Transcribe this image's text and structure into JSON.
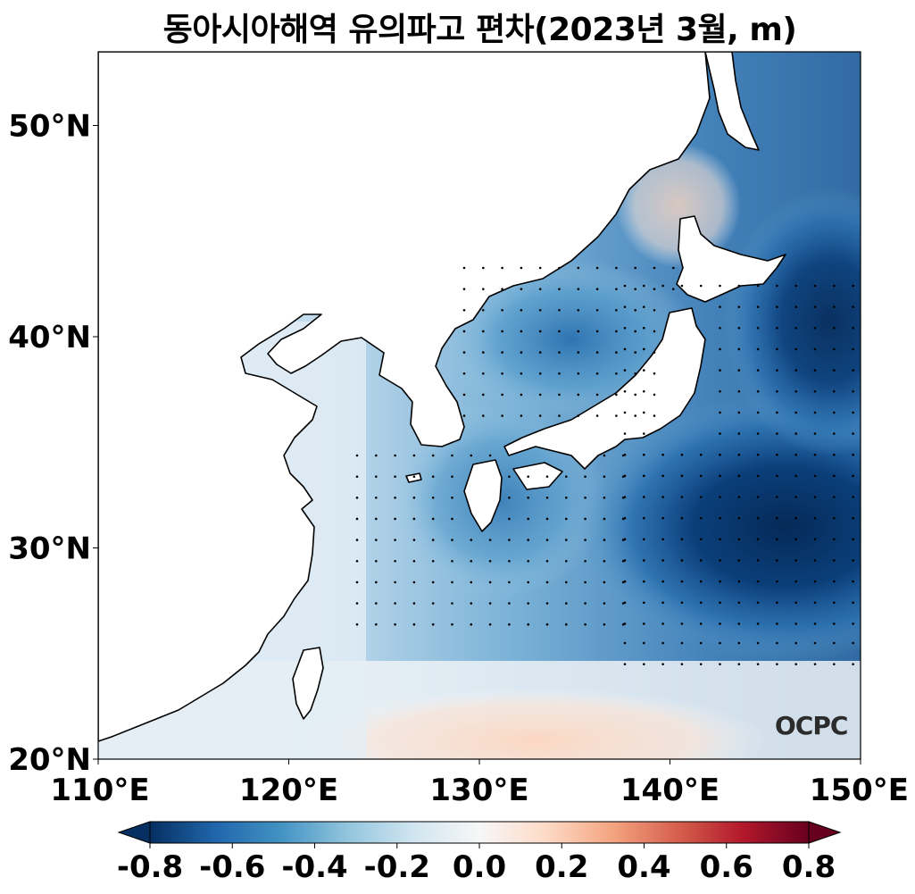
{
  "title": "동아시아해역 유의파고 편차(2023년 3월, m)",
  "logo_text": "OCPC",
  "map": {
    "lon_range": [
      110,
      150
    ],
    "lat_range": [
      20,
      53.5
    ],
    "x_ticks": [
      {
        "value": 110,
        "label": "110°E"
      },
      {
        "value": 120,
        "label": "120°E"
      },
      {
        "value": 130,
        "label": "130°E"
      },
      {
        "value": 140,
        "label": "140°E"
      },
      {
        "value": 150,
        "label": "150°E"
      }
    ],
    "y_ticks": [
      {
        "value": 20,
        "label": "20°N"
      },
      {
        "value": 30,
        "label": "30°N"
      },
      {
        "value": 40,
        "label": "40°N"
      },
      {
        "value": 50,
        "label": "50°N"
      }
    ]
  },
  "colorbar": {
    "range": [
      -0.8,
      0.8
    ],
    "extend": "both",
    "colormap": "RdBu_r",
    "stops": [
      "#053061",
      "#2166ac",
      "#4393c3",
      "#92c5de",
      "#d1e5f0",
      "#f7f7f7",
      "#fddbc7",
      "#f4a582",
      "#d6604d",
      "#b2182b",
      "#67001f"
    ],
    "ticks": [
      {
        "value": -0.8,
        "label": "-0.8"
      },
      {
        "value": -0.6,
        "label": "-0.6"
      },
      {
        "value": -0.4,
        "label": "-0.4"
      },
      {
        "value": -0.2,
        "label": "-0.2"
      },
      {
        "value": 0.0,
        "label": "0.0"
      },
      {
        "value": 0.2,
        "label": "0.2"
      },
      {
        "value": 0.4,
        "label": "0.4"
      },
      {
        "value": 0.6,
        "label": "0.6"
      },
      {
        "value": 0.8,
        "label": "0.8"
      }
    ]
  }
}
